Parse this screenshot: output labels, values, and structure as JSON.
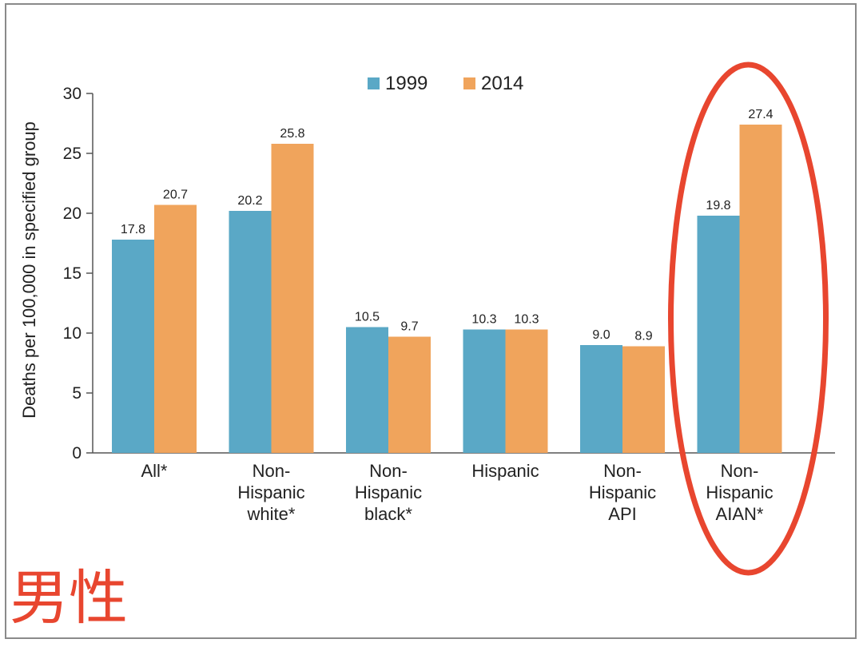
{
  "chart_data": {
    "type": "bar",
    "ylabel": "Deaths per 100,000 in specified group",
    "ylim": [
      0,
      30
    ],
    "yticks": [
      0,
      5,
      10,
      15,
      20,
      25,
      30
    ],
    "categories": [
      [
        "All*"
      ],
      [
        "Non-",
        "Hispanic",
        "white*"
      ],
      [
        "Non-",
        "Hispanic",
        "black*"
      ],
      [
        "Hispanic"
      ],
      [
        "Non-",
        "Hispanic",
        "API"
      ],
      [
        "Non-",
        "Hispanic",
        "AIAN*"
      ]
    ],
    "series": [
      {
        "name": "1999",
        "color": "#5aa8c6",
        "values": [
          17.8,
          20.2,
          10.5,
          10.3,
          9.0,
          19.8
        ],
        "labels": [
          "17.8",
          "20.2",
          "10.5",
          "10.3",
          "9.0",
          "19.8"
        ]
      },
      {
        "name": "2014",
        "color": "#f0a45c",
        "values": [
          20.7,
          25.8,
          9.7,
          10.3,
          8.9,
          27.4
        ],
        "labels": [
          "20.7",
          "25.8",
          "9.7",
          "10.3",
          "8.9",
          "27.4"
        ]
      }
    ],
    "legend_position": "top-center",
    "highlight": {
      "category_index": 5,
      "color": "#e8462f"
    }
  },
  "annotation": "男性"
}
